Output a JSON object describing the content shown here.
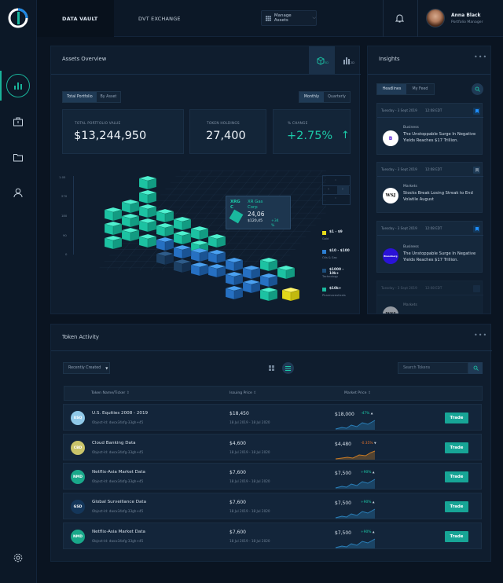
{
  "header": {
    "tabs": [
      {
        "label": "DATA VAULT"
      },
      {
        "label": "DVT EXCHANGE"
      }
    ],
    "manage_label": "Manage Assets",
    "user": {
      "name": "Anna Black",
      "role": "Portfolio Manager"
    }
  },
  "assets": {
    "title": "Assets Overview",
    "view_toggles": [
      "Total Portfolio",
      "By Asset"
    ],
    "period_toggles": [
      "Monthly",
      "Quarterly"
    ],
    "kpis": [
      {
        "label": "TOTAL PORTFOLIO VALUE",
        "value": "$13,244,950"
      },
      {
        "label": "TOKEN HOLDINGS",
        "value": "27,400"
      },
      {
        "label": "% CHANGE",
        "value": "+2.75%",
        "arrow": "↑"
      }
    ],
    "y_labels": [
      "1.05",
      "270",
      "180",
      "90",
      "0"
    ],
    "tooltip": {
      "code": "XRG",
      "code2": "C",
      "name": "XR Gas",
      "name2": "Corp",
      "price": "24,06",
      "sub": "$120,45",
      "chg": "+34",
      "pct": "%"
    },
    "legend": [
      {
        "label": "$1 - $9",
        "sub": "Gold",
        "color": "#e7dc1b"
      },
      {
        "label": "$10 - $100",
        "sub": "Oils & Gas",
        "color": "#2d7fd3"
      },
      {
        "label": "$1000 - 10k+",
        "sub": "Technology",
        "color": "#1d4d7a"
      },
      {
        "label": "$10k+",
        "sub": "Pharmaceuticals",
        "color": "#1ab89e"
      }
    ]
  },
  "insights": {
    "title": "Insights",
    "tabs": [
      "Headlines",
      "My Feed"
    ],
    "items": [
      {
        "date": "Tuesday - 3 Sept 2019",
        "time": "12:08 EDT",
        "category": "Business",
        "headline": "The Unstoppable Surge In Negative Yields Reaches $17 Trillion.",
        "logo": "B"
      },
      {
        "date": "Tuesday - 3 Sept 2019",
        "time": "12:08 EDT",
        "category": "Markets",
        "headline": "Stocks Break Losing Streak to End Volatile August",
        "logo": "WSJ"
      },
      {
        "date": "Tuesday - 3 Sept 2019",
        "time": "12:08 EDT",
        "category": "Business",
        "headline": "The Unstoppable Surge In Negative Yields Reaches $17 Trillion.",
        "logo": "Bloomberg"
      },
      {
        "date": "Tuesday - 3 Sept 2019",
        "time": "12:08 EDT",
        "category": "Markets",
        "headline": "",
        "logo": "WSJ"
      }
    ]
  },
  "tokens": {
    "title": "Token Activity",
    "filter": "Recently Created",
    "search_placeholder": "Search Tokens",
    "columns": [
      "Token Name/Ticker",
      "Issuing Price",
      "Market Price"
    ],
    "trade_label": "Trade",
    "rows": [
      {
        "ticker": "USQ",
        "name": "U.S. Equities 2008 - 2019",
        "id": "Object-Id: dwcx34sfg-33gh+45",
        "price": "$18,450",
        "dates": "18 Jul 2019 - 18 Jul 2020",
        "market": "$18,000",
        "chg": "-47%",
        "color": "#8fc8e8",
        "trend": "up"
      },
      {
        "ticker": "CBD",
        "name": "Cloud Banking Data",
        "id": "Object-Id: dwcx34sfg-33gh+45",
        "price": "$4,600",
        "dates": "18 Jul 2019 - 18 Jul 2020",
        "market": "$4,480",
        "chg": "-0.35%",
        "color": "#c9c46a",
        "trend": "down"
      },
      {
        "ticker": "NMD",
        "name": "Netflix-Asia Market Data",
        "id": "Object-Id: dwcx34sfg-33gh+45",
        "price": "$7,600",
        "dates": "18 Jul 2019 - 18 Jul 2020",
        "market": "$7,500",
        "chg": "+90%",
        "color": "#19a88a",
        "trend": "up"
      },
      {
        "ticker": "GSD",
        "name": "Global Surveillance Data",
        "id": "Object-Id: dwcx34sfg-33gh+45",
        "price": "$7,600",
        "dates": "18 Jul 2019 - 18 Jul 2020",
        "market": "$7,500",
        "chg": "+90%",
        "color": "#14365a",
        "trend": "up"
      },
      {
        "ticker": "NMD",
        "name": "Netflix-Asia Market Data",
        "id": "Object-Id: dwcx34sfg-33gh+45",
        "price": "$7,600",
        "dates": "18 Jul 2019 - 18 Jul 2020",
        "market": "$7,500",
        "chg": "+90%",
        "color": "#19a88a",
        "trend": "up"
      }
    ]
  }
}
